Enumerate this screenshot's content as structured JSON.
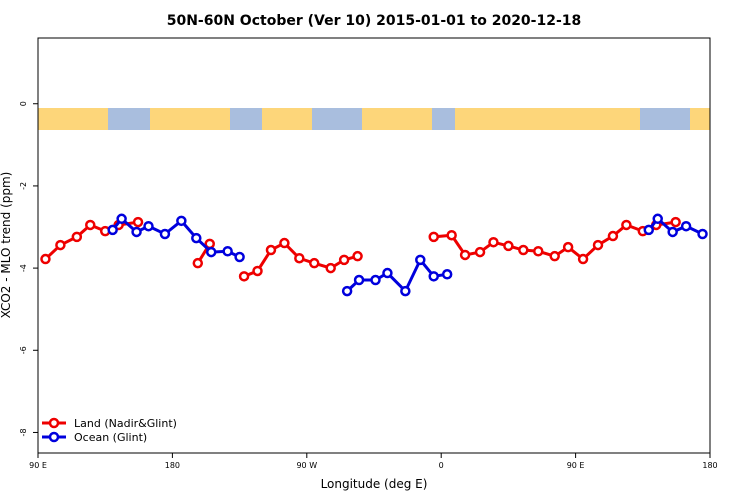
{
  "chart_data": {
    "type": "line",
    "title": "50N-60N October (Ver 10)   2015-01-01 to 2020-12-18",
    "x_label": "Longitude (deg E)",
    "y_label": "XCO2 - MLO trend (ppm)",
    "xlim": [
      90,
      540
    ],
    "ylim": [
      -8.5,
      1.6
    ],
    "xticks": [
      {
        "value": 90,
        "label": "90 E"
      },
      180,
      {
        "value": 270,
        "label": "90 W"
      },
      {
        "value": 360,
        "label": "0"
      },
      {
        "value": 450,
        "label": "90 E"
      },
      {
        "value": 540,
        "label": "180"
      }
    ],
    "yticks": [
      0,
      -2,
      -4,
      -6,
      -8
    ],
    "legend": "bottom-left",
    "series": [
      {
        "name": "Land (Nadir&Glint)",
        "color": "#ee0000",
        "x": [
          95,
          105,
          116,
          125,
          135,
          144,
          157,
          null,
          197,
          205,
          null,
          228,
          237,
          246,
          255,
          265,
          275,
          286,
          295,
          304,
          null,
          355,
          367,
          376,
          386,
          395,
          405,
          415,
          425,
          436,
          445,
          455,
          465,
          475,
          484,
          495,
          504,
          517
        ],
        "values": [
          -3.78,
          -3.44,
          -3.24,
          -2.95,
          -3.1,
          -2.95,
          -2.88,
          null,
          -3.88,
          -3.41,
          null,
          -4.2,
          -4.07,
          -3.56,
          -3.39,
          -3.76,
          -3.88,
          -4.0,
          -3.8,
          -3.71,
          null,
          -3.24,
          -3.2,
          -3.68,
          -3.61,
          -3.37,
          -3.46,
          -3.56,
          -3.59,
          -3.71,
          -3.49,
          -3.78,
          -3.44,
          -3.22,
          -2.95,
          -3.1,
          -2.95,
          -2.88
        ]
      },
      {
        "name": "Ocean (Glint)",
        "color": "#0000dd",
        "x": [
          140,
          146,
          156,
          164,
          175,
          186,
          196,
          206,
          217,
          225,
          null,
          297,
          305,
          316,
          324,
          336,
          346,
          355,
          364,
          null,
          499,
          505,
          515,
          524,
          535
        ],
        "values": [
          -3.07,
          -2.8,
          -3.12,
          -2.98,
          -3.17,
          -2.85,
          -3.27,
          -3.61,
          -3.59,
          -3.73,
          null,
          -4.56,
          -4.29,
          -4.29,
          -4.12,
          -4.56,
          -3.8,
          -4.2,
          -4.15,
          null,
          -3.07,
          -2.8,
          -3.12,
          -2.98,
          -3.17
        ]
      }
    ]
  }
}
